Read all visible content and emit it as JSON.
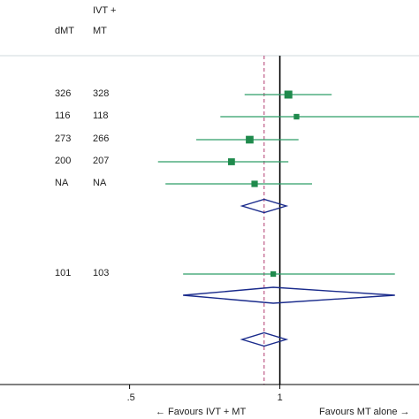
{
  "header": {
    "col_a": "dMT",
    "col_b_line1": "IVT +",
    "col_b_line2": "MT"
  },
  "chart_data": {
    "type": "forest",
    "x_scale": "log",
    "x_ticks": [
      {
        "value": 0.5,
        "label": ".5"
      },
      {
        "value": 1,
        "label": "1"
      }
    ],
    "xlim": [
      0.275,
      1.9
    ],
    "null_line": 1,
    "overall_line": 0.93,
    "footer_left": "← Favours IVT + MT",
    "footer_right": "Favours MT alone →",
    "rows": [
      {
        "kind": "study",
        "n_a": "326",
        "n_b": "328",
        "est": 1.04,
        "lo": 0.85,
        "hi": 1.27,
        "weight": 1.0
      },
      {
        "kind": "study",
        "n_a": "116",
        "n_b": "118",
        "est": 1.08,
        "lo": 0.76,
        "hi": 1.9,
        "weight": 0.55
      },
      {
        "kind": "study",
        "n_a": "273",
        "n_b": "266",
        "est": 0.87,
        "lo": 0.68,
        "hi": 1.09,
        "weight": 0.95
      },
      {
        "kind": "study",
        "n_a": "200",
        "n_b": "207",
        "est": 0.8,
        "lo": 0.57,
        "hi": 1.04,
        "weight": 0.8
      },
      {
        "kind": "study",
        "n_a": "NA",
        "n_b": "NA",
        "est": 0.89,
        "lo": 0.59,
        "hi": 1.16,
        "weight": 0.7
      },
      {
        "kind": "pooled",
        "est": 0.93,
        "lo": 0.84,
        "hi": 1.03
      },
      {
        "kind": "study",
        "n_a": "101",
        "n_b": "103",
        "est": 0.97,
        "lo": 0.64,
        "hi": 1.7,
        "weight": 0.55
      },
      {
        "kind": "pooled",
        "est": 0.97,
        "lo": 0.64,
        "hi": 1.7
      },
      {
        "kind": "pooled",
        "est": 0.93,
        "lo": 0.84,
        "hi": 1.03
      }
    ]
  }
}
